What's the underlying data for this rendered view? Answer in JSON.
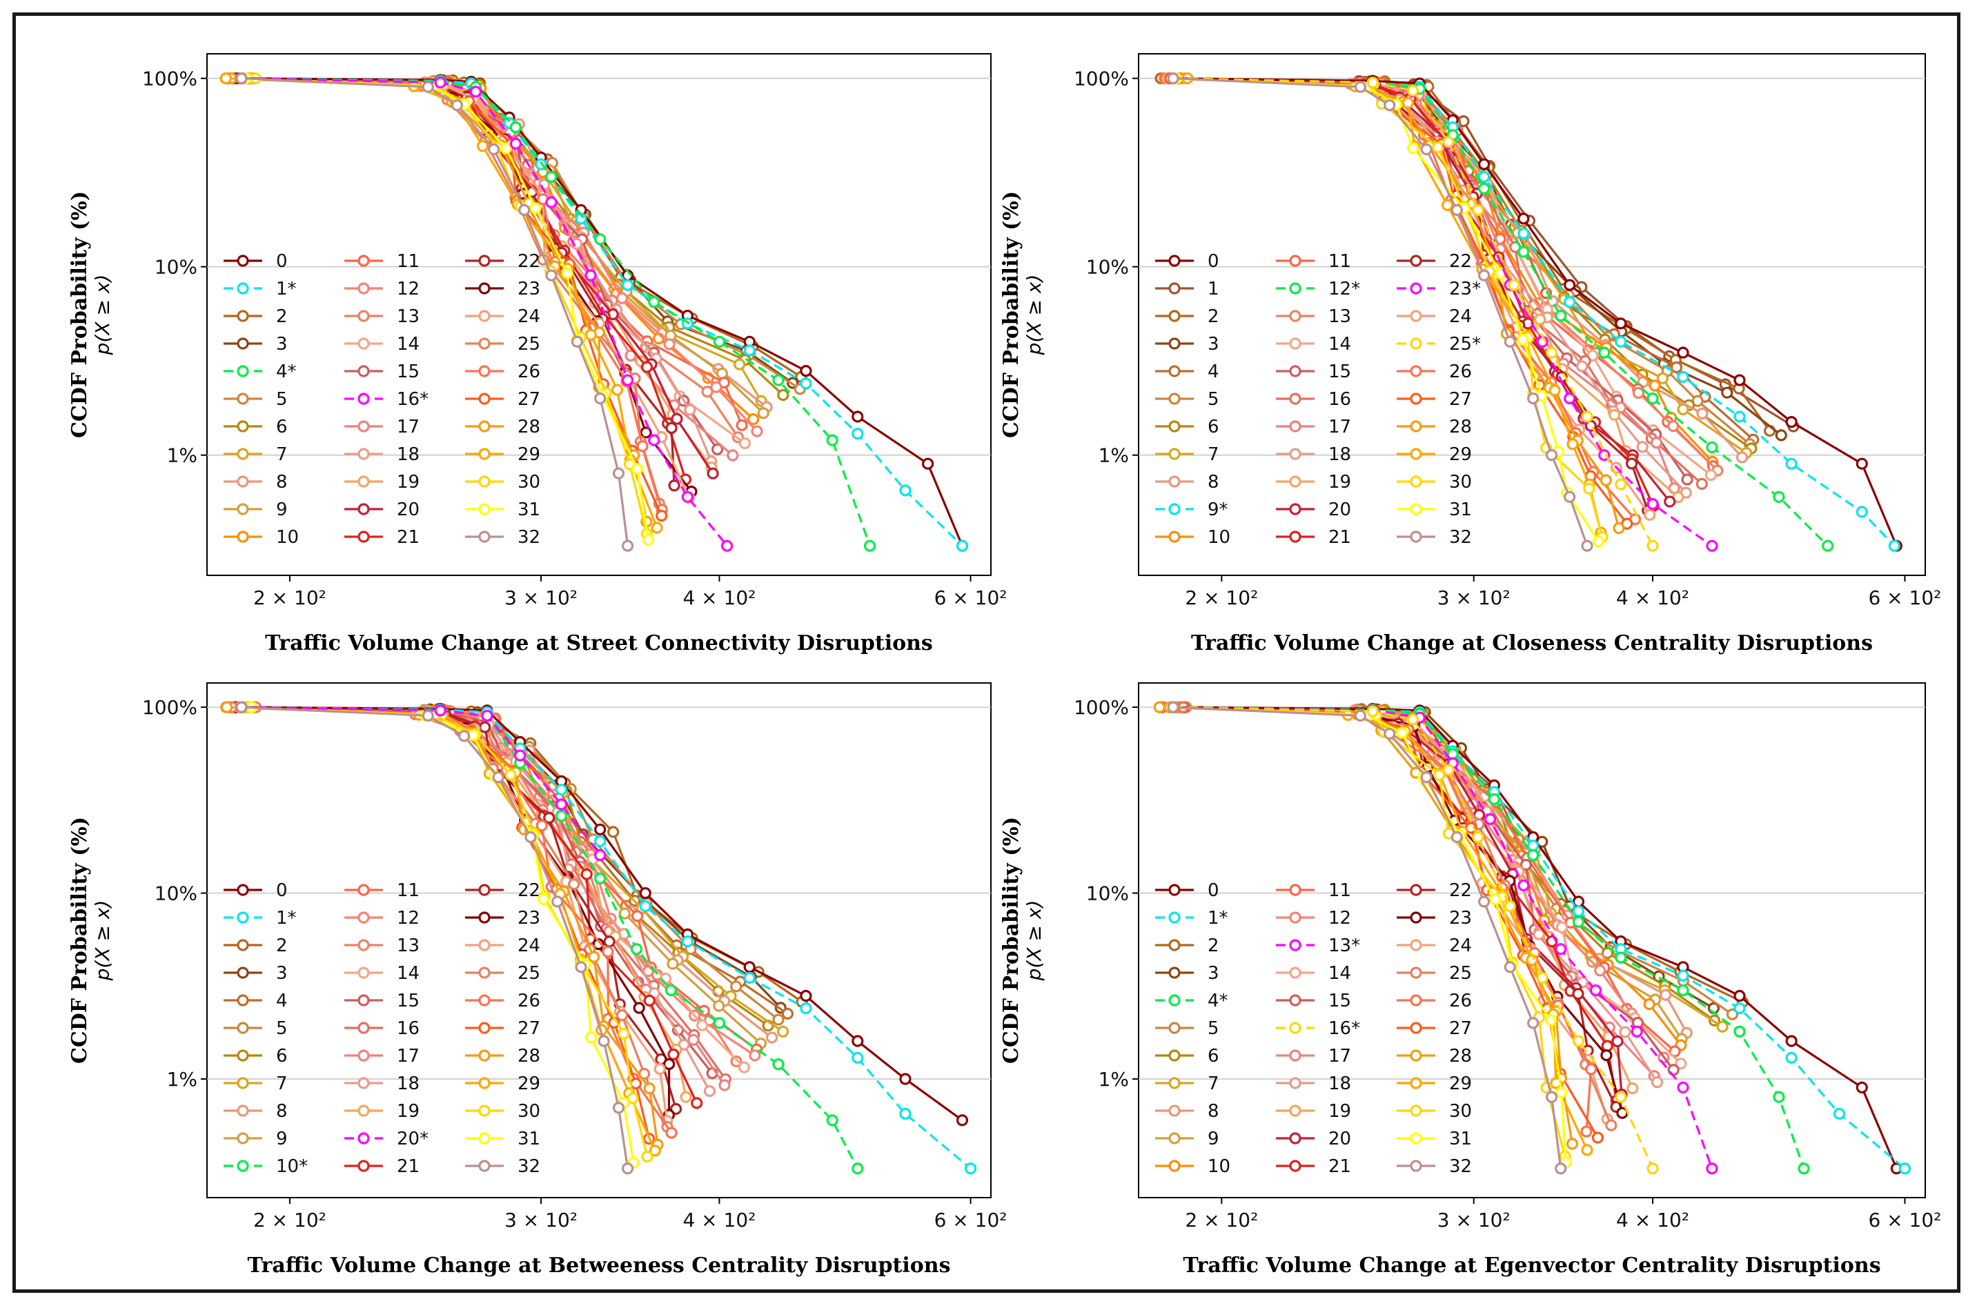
{
  "chart_data": [
    {
      "type": "line",
      "title": "",
      "xlabel": "Traffic Volume Change at Street Connectivity Disruptions",
      "ylabel": "CCDF Probability (%)",
      "ylabel_sub": "p(X ≥ x)",
      "xscale": "log",
      "yscale": "log",
      "xlim": [
        175,
        620
      ],
      "ylim": [
        0.0023,
        1.35
      ],
      "xticks": [
        {
          "v": 200,
          "label": "2 × 10²"
        },
        {
          "v": 300,
          "label": "3 × 10²"
        },
        {
          "v": 400,
          "label": "4 × 10²"
        },
        {
          "v": 600,
          "label": "6 × 10²"
        }
      ],
      "yticks": [
        {
          "v": 1,
          "label": "100%"
        },
        {
          "v": 0.1,
          "label": "10%"
        },
        {
          "v": 0.01,
          "label": "1%"
        }
      ],
      "grid": "y",
      "legend_position": "lower-left",
      "highlighted": [
        1,
        4,
        16
      ],
      "legend": [
        "0",
        "1*",
        "2",
        "3",
        "4*",
        "5",
        "6",
        "7",
        "8",
        "9",
        "10",
        "11",
        "12",
        "13",
        "14",
        "15",
        "16*",
        "17",
        "18",
        "19",
        "20",
        "21",
        "22",
        "23",
        "24",
        "25",
        "26",
        "27",
        "28",
        "29",
        "30",
        "31",
        "32"
      ],
      "series": [
        {
          "name": "0",
          "x": [
            185,
            255,
            268,
            285,
            300,
            320,
            345,
            380,
            420,
            460,
            500,
            560,
            592
          ],
          "y": [
            1,
            0.98,
            0.96,
            0.62,
            0.38,
            0.2,
            0.09,
            0.055,
            0.04,
            0.028,
            0.016,
            0.009,
            0.0033
          ]
        },
        {
          "name": "1*",
          "x": [
            185,
            255,
            268,
            285,
            300,
            320,
            345,
            380,
            420,
            460,
            500,
            540,
            592
          ],
          "y": [
            1,
            0.97,
            0.94,
            0.58,
            0.35,
            0.18,
            0.08,
            0.05,
            0.036,
            0.024,
            0.013,
            0.0065,
            0.0033
          ]
        },
        {
          "name": "4*",
          "x": [
            185,
            255,
            270,
            288,
            305,
            330,
            360,
            400,
            440,
            480,
            510
          ],
          "y": [
            1,
            0.96,
            0.9,
            0.55,
            0.3,
            0.14,
            0.065,
            0.04,
            0.025,
            0.012,
            0.0033
          ]
        },
        {
          "name": "16*",
          "x": [
            185,
            255,
            270,
            288,
            305,
            325,
            345,
            360,
            380,
            405
          ],
          "y": [
            1,
            0.95,
            0.85,
            0.45,
            0.22,
            0.09,
            0.025,
            0.012,
            0.006,
            0.0033
          ]
        },
        {
          "name": "32",
          "x": [
            185,
            250,
            262,
            278,
            292,
            305,
            318,
            330,
            340,
            345
          ],
          "y": [
            1,
            0.9,
            0.72,
            0.42,
            0.2,
            0.09,
            0.04,
            0.02,
            0.008,
            0.0033
          ]
        }
      ]
    },
    {
      "type": "line",
      "title": "",
      "xlabel": "Traffic Volume Change at Closeness Centrality Disruptions",
      "ylabel": "CCDF Probability (%)",
      "ylabel_sub": "p(X ≥ x)",
      "xscale": "log",
      "yscale": "log",
      "xlim": [
        175,
        620
      ],
      "ylim": [
        0.0023,
        1.35
      ],
      "xticks": [
        {
          "v": 200,
          "label": "2 × 10²"
        },
        {
          "v": 300,
          "label": "3 × 10²"
        },
        {
          "v": 400,
          "label": "4 × 10²"
        },
        {
          "v": 600,
          "label": "6 × 10²"
        }
      ],
      "yticks": [
        {
          "v": 1,
          "label": "100%"
        },
        {
          "v": 0.1,
          "label": "10%"
        },
        {
          "v": 0.01,
          "label": "1%"
        }
      ],
      "grid": "y",
      "legend_position": "lower-left",
      "highlighted": [
        9,
        12,
        23,
        25
      ],
      "legend": [
        "0",
        "1",
        "2",
        "3",
        "4",
        "5",
        "6",
        "7",
        "8",
        "9*",
        "10",
        "11",
        "12*",
        "13",
        "14",
        "15",
        "16",
        "17",
        "18",
        "19",
        "20",
        "21",
        "22",
        "23*",
        "24",
        "25*",
        "26",
        "27",
        "28",
        "29",
        "30",
        "31",
        "32"
      ],
      "series": [
        {
          "name": "0",
          "x": [
            185,
            255,
            275,
            290,
            305,
            325,
            350,
            380,
            420,
            460,
            500,
            560,
            592
          ],
          "y": [
            1,
            0.97,
            0.94,
            0.6,
            0.35,
            0.18,
            0.08,
            0.05,
            0.035,
            0.025,
            0.015,
            0.009,
            0.0033
          ]
        },
        {
          "name": "9*",
          "x": [
            185,
            255,
            275,
            290,
            305,
            325,
            350,
            380,
            420,
            460,
            500,
            560,
            590
          ],
          "y": [
            1,
            0.95,
            0.9,
            0.55,
            0.3,
            0.15,
            0.065,
            0.04,
            0.026,
            0.016,
            0.009,
            0.005,
            0.0033
          ]
        },
        {
          "name": "12*",
          "x": [
            185,
            255,
            275,
            290,
            305,
            325,
            345,
            370,
            400,
            440,
            490,
            530
          ],
          "y": [
            1,
            0.95,
            0.88,
            0.5,
            0.26,
            0.12,
            0.055,
            0.035,
            0.02,
            0.011,
            0.006,
            0.0033
          ]
        },
        {
          "name": "23*",
          "x": [
            185,
            255,
            272,
            288,
            302,
            318,
            335,
            350,
            370,
            400,
            440
          ],
          "y": [
            1,
            0.95,
            0.85,
            0.45,
            0.2,
            0.08,
            0.04,
            0.02,
            0.01,
            0.0055,
            0.0033
          ]
        },
        {
          "name": "25*",
          "x": [
            185,
            255,
            272,
            288,
            302,
            320,
            340,
            360,
            380,
            400
          ],
          "y": [
            1,
            0.95,
            0.86,
            0.46,
            0.2,
            0.08,
            0.035,
            0.016,
            0.007,
            0.0033
          ]
        },
        {
          "name": "32",
          "x": [
            185,
            250,
            262,
            278,
            292,
            305,
            318,
            330,
            340,
            350,
            360
          ],
          "y": [
            1,
            0.9,
            0.72,
            0.42,
            0.2,
            0.09,
            0.04,
            0.02,
            0.01,
            0.006,
            0.0033
          ]
        }
      ]
    },
    {
      "type": "line",
      "title": "",
      "xlabel": "Traffic Volume Change at Betweeness Centrality Disruptions",
      "ylabel": "CCDF Probability (%)",
      "ylabel_sub": "p(X ≥ x)",
      "xscale": "log",
      "yscale": "log",
      "xlim": [
        175,
        620
      ],
      "ylim": [
        0.0023,
        1.35
      ],
      "xticks": [
        {
          "v": 200,
          "label": "2 × 10²"
        },
        {
          "v": 300,
          "label": "3 × 10²"
        },
        {
          "v": 400,
          "label": "4 × 10²"
        },
        {
          "v": 600,
          "label": "6 × 10²"
        }
      ],
      "yticks": [
        {
          "v": 1,
          "label": "100%"
        },
        {
          "v": 0.1,
          "label": "10%"
        },
        {
          "v": 0.01,
          "label": "1%"
        }
      ],
      "grid": "y",
      "legend_position": "lower-left",
      "highlighted": [
        1,
        10,
        20
      ],
      "legend": [
        "0",
        "1*",
        "2",
        "3",
        "4",
        "5",
        "6",
        "7",
        "8",
        "9",
        "10*",
        "11",
        "12",
        "13",
        "14",
        "15",
        "16",
        "17",
        "18",
        "19",
        "20*",
        "21",
        "22",
        "23",
        "24",
        "25",
        "26",
        "27",
        "28",
        "29",
        "30",
        "31",
        "32"
      ],
      "series": [
        {
          "name": "0",
          "x": [
            185,
            255,
            275,
            290,
            310,
            330,
            355,
            380,
            420,
            460,
            500,
            540,
            592
          ],
          "y": [
            1,
            0.98,
            0.96,
            0.65,
            0.4,
            0.22,
            0.1,
            0.06,
            0.04,
            0.028,
            0.016,
            0.01,
            0.006
          ]
        },
        {
          "name": "1*",
          "x": [
            185,
            255,
            275,
            290,
            310,
            330,
            355,
            380,
            420,
            460,
            500,
            540,
            600
          ],
          "y": [
            1,
            0.97,
            0.94,
            0.6,
            0.36,
            0.19,
            0.085,
            0.055,
            0.035,
            0.024,
            0.013,
            0.0065,
            0.0033
          ]
        },
        {
          "name": "10*",
          "x": [
            185,
            255,
            275,
            290,
            310,
            330,
            350,
            370,
            400,
            440,
            480,
            500
          ],
          "y": [
            1,
            0.96,
            0.9,
            0.5,
            0.26,
            0.12,
            0.05,
            0.03,
            0.02,
            0.012,
            0.006,
            0.0033
          ]
        },
        {
          "name": "20*",
          "x": [
            185,
            255,
            275,
            290,
            310,
            330
          ],
          "y": [
            1,
            0.96,
            0.9,
            0.55,
            0.3,
            0.16
          ]
        },
        {
          "name": "32",
          "x": [
            185,
            250,
            265,
            280,
            295,
            308,
            320,
            332,
            340,
            345
          ],
          "y": [
            1,
            0.9,
            0.7,
            0.42,
            0.2,
            0.09,
            0.04,
            0.016,
            0.007,
            0.0033
          ]
        }
      ]
    },
    {
      "type": "line",
      "title": "",
      "xlabel": "Traffic Volume Change at Egenvector Centrality Disruptions",
      "ylabel": "CCDF Probability (%)",
      "ylabel_sub": "p(X ≥ x)",
      "xscale": "log",
      "yscale": "log",
      "xlim": [
        175,
        620
      ],
      "ylim": [
        0.0023,
        1.35
      ],
      "xticks": [
        {
          "v": 200,
          "label": "2 × 10²"
        },
        {
          "v": 300,
          "label": "3 × 10²"
        },
        {
          "v": 400,
          "label": "4 × 10²"
        },
        {
          "v": 600,
          "label": "6 × 10²"
        }
      ],
      "yticks": [
        {
          "v": 1,
          "label": "100%"
        },
        {
          "v": 0.1,
          "label": "10%"
        },
        {
          "v": 0.01,
          "label": "1%"
        }
      ],
      "grid": "y",
      "legend_position": "lower-left",
      "highlighted": [
        1,
        4,
        13,
        16
      ],
      "legend": [
        "0",
        "1*",
        "2",
        "3",
        "4*",
        "5",
        "6",
        "7",
        "8",
        "9",
        "10",
        "11",
        "12",
        "13*",
        "14",
        "15",
        "16*",
        "17",
        "18",
        "19",
        "20",
        "21",
        "22",
        "23",
        "24",
        "25",
        "26",
        "27",
        "28",
        "29",
        "30",
        "31",
        "32"
      ],
      "series": [
        {
          "name": "0",
          "x": [
            185,
            255,
            275,
            290,
            310,
            330,
            355,
            380,
            420,
            460,
            500,
            560,
            592
          ],
          "y": [
            1,
            0.98,
            0.96,
            0.62,
            0.38,
            0.2,
            0.09,
            0.055,
            0.04,
            0.028,
            0.016,
            0.009,
            0.0033
          ]
        },
        {
          "name": "1*",
          "x": [
            185,
            255,
            275,
            290,
            310,
            330,
            355,
            380,
            420,
            460,
            500,
            540,
            600
          ],
          "y": [
            1,
            0.97,
            0.94,
            0.58,
            0.35,
            0.18,
            0.08,
            0.05,
            0.036,
            0.024,
            0.013,
            0.0065,
            0.0033
          ]
        },
        {
          "name": "4*",
          "x": [
            185,
            255,
            275,
            290,
            310,
            330,
            355,
            380,
            420,
            460,
            490,
            510
          ],
          "y": [
            1,
            0.97,
            0.92,
            0.56,
            0.32,
            0.16,
            0.07,
            0.045,
            0.03,
            0.018,
            0.008,
            0.0033
          ]
        },
        {
          "name": "13*",
          "x": [
            185,
            255,
            275,
            290,
            308,
            325,
            345,
            365,
            390,
            420,
            440
          ],
          "y": [
            1,
            0.96,
            0.88,
            0.5,
            0.25,
            0.11,
            0.05,
            0.03,
            0.018,
            0.009,
            0.0033
          ]
        },
        {
          "name": "16*",
          "x": [
            185,
            255,
            272,
            288,
            302,
            318,
            335,
            355,
            380,
            400
          ],
          "y": [
            1,
            0.95,
            0.86,
            0.46,
            0.2,
            0.085,
            0.035,
            0.016,
            0.008,
            0.0033
          ]
        },
        {
          "name": "32",
          "x": [
            185,
            250,
            262,
            278,
            292,
            305,
            318,
            330,
            340,
            345
          ],
          "y": [
            1,
            0.9,
            0.72,
            0.42,
            0.2,
            0.09,
            0.04,
            0.02,
            0.008,
            0.0033
          ]
        }
      ]
    }
  ]
}
